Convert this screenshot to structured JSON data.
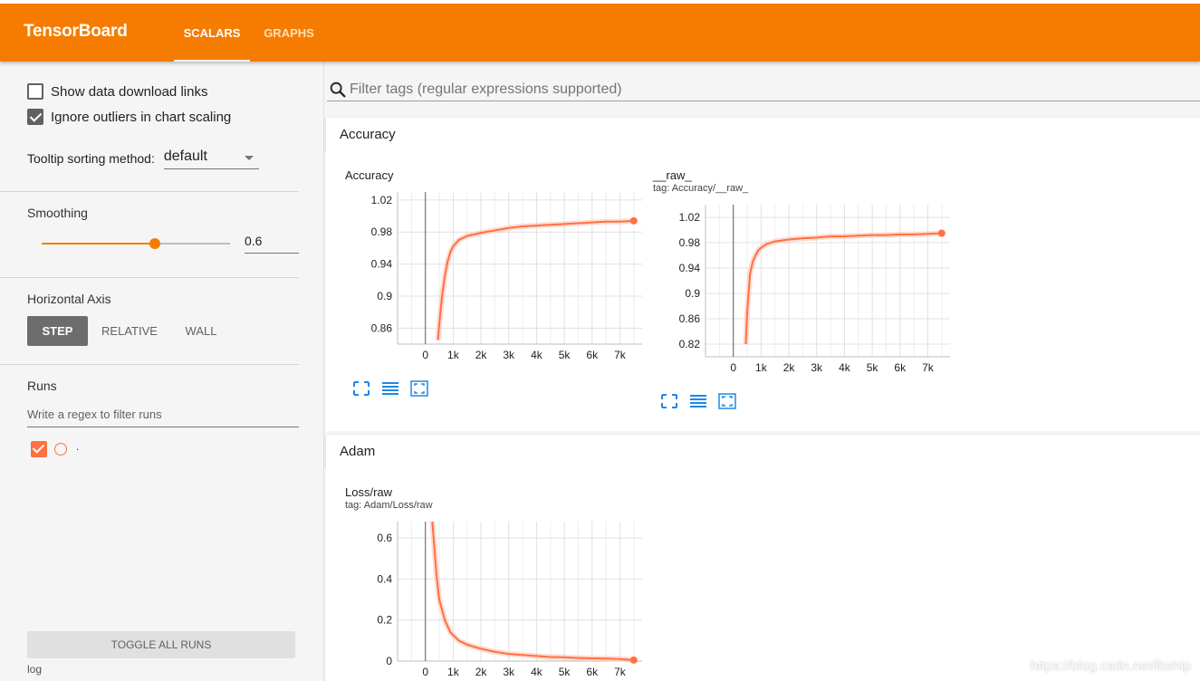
{
  "app": {
    "title": "TensorBoard",
    "tabs": [
      {
        "label": "SCALARS",
        "active": true
      },
      {
        "label": "GRAPHS",
        "active": false
      }
    ],
    "accent_color": "#f57c00"
  },
  "sidebar": {
    "show_download_links": {
      "label": "Show data download links",
      "checked": false
    },
    "ignore_outliers": {
      "label": "Ignore outliers in chart scaling",
      "checked": true
    },
    "tooltip_sorting": {
      "label": "Tooltip sorting method:",
      "value": "default"
    },
    "smoothing": {
      "label": "Smoothing",
      "value": "0.6",
      "fraction": 0.6
    },
    "horizontal_axis": {
      "label": "Horizontal Axis",
      "options": [
        "STEP",
        "RELATIVE",
        "WALL"
      ],
      "selected": "STEP"
    },
    "runs": {
      "label": "Runs",
      "filter_placeholder": "Write a regex to filter runs",
      "items": [
        {
          "name": ".",
          "checked": true,
          "color": "#ff7043"
        }
      ],
      "toggle_label": "TOGGLE ALL RUNS",
      "logdir": "log"
    }
  },
  "main": {
    "filter_placeholder": "Filter tags (regular expressions supported)",
    "categories": [
      {
        "name": "Accuracy"
      },
      {
        "name": "Adam"
      }
    ]
  },
  "chart_data": [
    {
      "type": "line",
      "title": "Accuracy",
      "subtitle": "",
      "xlim": [
        -1000,
        7800
      ],
      "ylim": [
        0.84,
        1.03
      ],
      "x_ticks": [
        "0",
        "1k",
        "2k",
        "3k",
        "4k",
        "5k",
        "6k",
        "7k"
      ],
      "y_ticks": [
        "1.02",
        "0.98",
        "0.94",
        "0.9",
        "0.86"
      ],
      "y_tick_values": [
        1.02,
        0.98,
        0.94,
        0.9,
        0.86
      ],
      "series": [
        {
          "values_x": [
            450,
            520,
            600,
            700,
            800,
            900,
            1000,
            1200,
            1500,
            2000,
            2500,
            3000,
            3500,
            4000,
            4500,
            5000,
            5500,
            6000,
            6500,
            7000,
            7500
          ],
          "values_y": [
            0.845,
            0.872,
            0.9,
            0.925,
            0.943,
            0.955,
            0.962,
            0.97,
            0.975,
            0.979,
            0.982,
            0.985,
            0.987,
            0.988,
            0.989,
            0.99,
            0.991,
            0.992,
            0.993,
            0.993,
            0.994
          ]
        }
      ]
    },
    {
      "type": "line",
      "title": "__raw_",
      "subtitle": "tag: Accuracy/__raw_",
      "xlim": [
        -1000,
        7800
      ],
      "ylim": [
        0.8,
        1.04
      ],
      "x_ticks": [
        "0",
        "1k",
        "2k",
        "3k",
        "4k",
        "5k",
        "6k",
        "7k"
      ],
      "y_ticks": [
        "1.02",
        "0.98",
        "0.94",
        "0.9",
        "0.86",
        "0.82"
      ],
      "y_tick_values": [
        1.02,
        0.98,
        0.94,
        0.9,
        0.86,
        0.82
      ],
      "series": [
        {
          "values_x": [
            450,
            500,
            600,
            700,
            800,
            900,
            1000,
            1200,
            1500,
            2000,
            2500,
            3000,
            3500,
            4000,
            4500,
            5000,
            5500,
            6000,
            6500,
            7000,
            7500
          ],
          "values_y": [
            0.82,
            0.87,
            0.93,
            0.95,
            0.96,
            0.968,
            0.972,
            0.978,
            0.982,
            0.985,
            0.987,
            0.988,
            0.99,
            0.99,
            0.991,
            0.992,
            0.992,
            0.993,
            0.993,
            0.994,
            0.995
          ]
        }
      ]
    },
    {
      "type": "line",
      "title": "Loss/raw",
      "subtitle": "tag: Adam/Loss/raw",
      "xlim": [
        -1000,
        7800
      ],
      "ylim": [
        0,
        0.68
      ],
      "x_ticks": [
        "0",
        "1k",
        "2k",
        "3k",
        "4k",
        "5k",
        "6k",
        "7k"
      ],
      "y_ticks": [
        "0.6",
        "0.4",
        "0.2",
        "0"
      ],
      "y_tick_values": [
        0.6,
        0.4,
        0.2,
        0
      ],
      "series": [
        {
          "values_x": [
            250,
            400,
            500,
            700,
            900,
            1200,
            1500,
            2000,
            2500,
            3000,
            3500,
            4000,
            4500,
            5000,
            5500,
            6000,
            6500,
            7000,
            7500
          ],
          "values_y": [
            0.68,
            0.42,
            0.3,
            0.2,
            0.14,
            0.1,
            0.08,
            0.06,
            0.045,
            0.035,
            0.03,
            0.025,
            0.02,
            0.018,
            0.015,
            0.013,
            0.012,
            0.01,
            0.005
          ]
        }
      ]
    }
  ],
  "watermark": "https://blog.csdn.net/lbship"
}
